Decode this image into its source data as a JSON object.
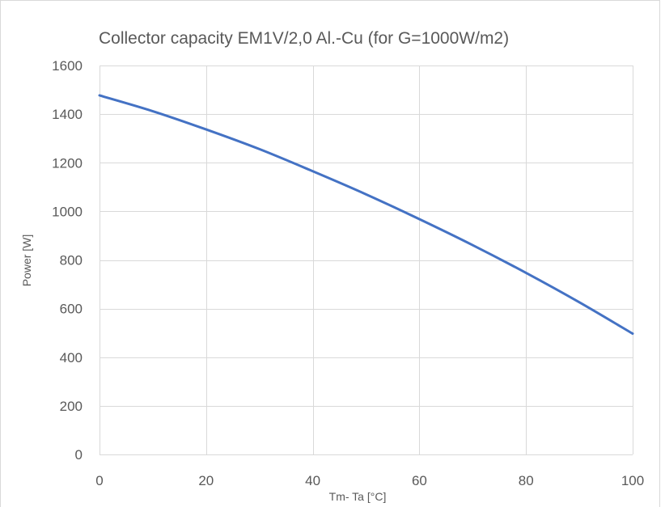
{
  "chart_data": {
    "type": "line",
    "title": "Collector capacity EM1V/2,0 Al.-Cu (for G=1000W/m2)",
    "xlabel": "Tm- Ta [°C]",
    "ylabel": "Power [W]",
    "xlim": [
      0,
      100
    ],
    "ylim": [
      0,
      1600
    ],
    "xticks": [
      0,
      20,
      40,
      60,
      80,
      100
    ],
    "yticks": [
      0,
      200,
      400,
      600,
      800,
      1000,
      1200,
      1400,
      1600
    ],
    "grid": true,
    "legend": "none",
    "series": [
      {
        "color": "#4472c4",
        "x": [
          0,
          10,
          20,
          30,
          40,
          50,
          60,
          70,
          80,
          90,
          100
        ],
        "y": [
          1477,
          1412,
          1337,
          1256,
          1165,
          1070,
          968,
          861,
          747,
          626,
          497
        ]
      }
    ]
  }
}
